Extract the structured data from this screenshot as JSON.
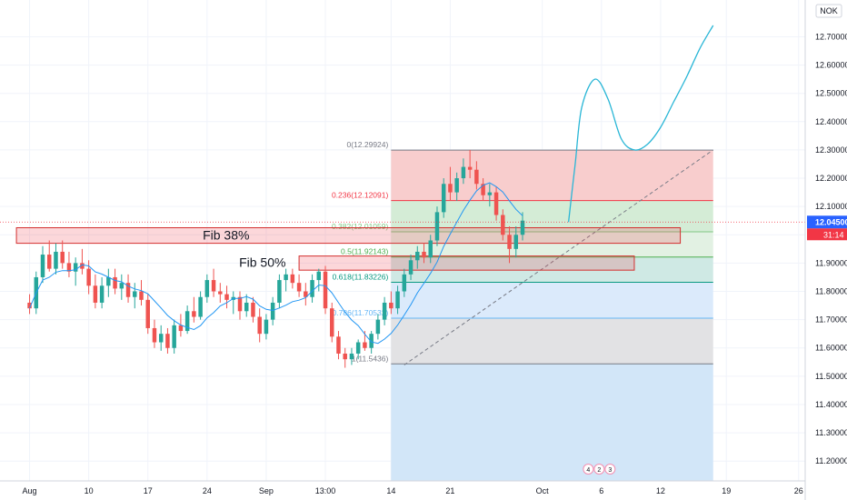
{
  "chart_data": {
    "type": "candlestick",
    "currency_badge": "NOK",
    "y_ticks": [
      "12.70000",
      "12.60000",
      "12.50000",
      "12.40000",
      "12.30000",
      "12.20000",
      "12.10000",
      "12.00000",
      "11.90000",
      "11.80000",
      "11.70000",
      "11.60000",
      "11.50000",
      "11.40000",
      "11.30000",
      "11.20000"
    ],
    "y_tick_values": [
      12.7,
      12.6,
      12.5,
      12.4,
      12.3,
      12.2,
      12.1,
      12.0,
      11.9,
      11.8,
      11.7,
      11.6,
      11.5,
      11.4,
      11.3,
      11.2
    ],
    "ylim": [
      11.13,
      12.83
    ],
    "x_ticks": [
      "Aug",
      "10",
      "17",
      "24",
      "Sep",
      "13:00",
      "14",
      "21",
      "Oct",
      "6",
      "12",
      "19",
      "26"
    ],
    "x_tick_index": [
      0,
      9,
      18,
      27,
      36,
      45,
      55,
      64,
      78,
      87,
      96,
      106,
      117
    ],
    "bar_index_range": [
      -4.5,
      118
    ],
    "current_price": {
      "label": "12.04500",
      "value": 12.045,
      "countdown": "31:14",
      "color": "#2962ff"
    },
    "fib_levels": [
      {
        "label": "0(12.29924)",
        "value": 12.29924,
        "color": "#787b86"
      },
      {
        "label": "0.236(12.12091)",
        "value": 12.12091,
        "color": "#f23645"
      },
      {
        "label": "0.382(12.01059)",
        "value": 12.01059,
        "color": "#81c784"
      },
      {
        "label": "0.5(11.92143)",
        "value": 11.92143,
        "color": "#4caf50"
      },
      {
        "label": "0.618(11.83226)",
        "value": 11.83226,
        "color": "#089981"
      },
      {
        "label": "0.786(11.70532)",
        "value": 11.70532,
        "color": "#64b5f6"
      },
      {
        "label": "1(11.5436)",
        "value": 11.5436,
        "color": "#787b86"
      }
    ],
    "fib_fills": [
      "#f8cdcd",
      "#d4ecd6",
      "#e2f1e3",
      "#cfe9e4",
      "#dbeafb",
      "#e2e2e4"
    ],
    "fib_start_index": 55,
    "fib_end_index": 104,
    "fib_extension_fill": "#d2e6f8",
    "zones": [
      {
        "label": "Fib 38%",
        "x_start": -2,
        "x_end": 99,
        "low": 11.97,
        "high": 12.025
      },
      {
        "label": "Fib 50%",
        "x_start": 41,
        "x_end": 92,
        "low": 11.875,
        "high": 11.925
      }
    ],
    "trendline": {
      "x_start": 57,
      "y_start": 11.54,
      "x_end": 104,
      "y_end": 12.3
    },
    "projection": {
      "x": [
        82,
        83,
        84,
        86,
        88,
        90,
        92,
        94,
        96,
        98,
        100,
        102,
        104
      ],
      "y": [
        12.045,
        12.25,
        12.45,
        12.55,
        12.48,
        12.34,
        12.3,
        12.32,
        12.38,
        12.47,
        12.56,
        12.66,
        12.74
      ]
    },
    "ma_color": "#2196f3",
    "up_color": "#26a69a",
    "down_color": "#ef5350",
    "ohlc": [
      [
        11.76,
        11.79,
        11.72,
        11.74
      ],
      [
        11.74,
        11.87,
        11.72,
        11.85
      ],
      [
        11.85,
        11.96,
        11.83,
        11.93
      ],
      [
        11.93,
        11.98,
        11.87,
        11.88
      ],
      [
        11.88,
        11.97,
        11.86,
        11.94
      ],
      [
        11.94,
        11.98,
        11.88,
        11.9
      ],
      [
        11.9,
        11.94,
        11.85,
        11.87
      ],
      [
        11.87,
        11.92,
        11.82,
        11.9
      ],
      [
        11.9,
        11.95,
        11.86,
        11.88
      ],
      [
        11.88,
        11.91,
        11.79,
        11.82
      ],
      [
        11.82,
        11.86,
        11.74,
        11.76
      ],
      [
        11.76,
        11.85,
        11.74,
        11.82
      ],
      [
        11.82,
        11.88,
        11.78,
        11.85
      ],
      [
        11.85,
        11.88,
        11.79,
        11.81
      ],
      [
        11.81,
        11.86,
        11.77,
        11.83
      ],
      [
        11.83,
        11.86,
        11.76,
        11.78
      ],
      [
        11.78,
        11.83,
        11.74,
        11.8
      ],
      [
        11.8,
        11.84,
        11.75,
        11.77
      ],
      [
        11.77,
        11.79,
        11.65,
        11.67
      ],
      [
        11.67,
        11.7,
        11.6,
        11.62
      ],
      [
        11.62,
        11.68,
        11.59,
        11.65
      ],
      [
        11.65,
        11.67,
        11.58,
        11.6
      ],
      [
        11.6,
        11.7,
        11.58,
        11.68
      ],
      [
        11.68,
        11.72,
        11.64,
        11.66
      ],
      [
        11.66,
        11.75,
        11.65,
        11.73
      ],
      [
        11.73,
        11.78,
        11.69,
        11.71
      ],
      [
        11.71,
        11.8,
        11.7,
        11.78
      ],
      [
        11.78,
        11.86,
        11.76,
        11.84
      ],
      [
        11.84,
        11.88,
        11.78,
        11.8
      ],
      [
        11.8,
        11.83,
        11.76,
        11.79
      ],
      [
        11.79,
        11.82,
        11.74,
        11.77
      ],
      [
        11.77,
        11.8,
        11.72,
        11.78
      ],
      [
        11.78,
        11.8,
        11.7,
        11.73
      ],
      [
        11.73,
        11.79,
        11.71,
        11.76
      ],
      [
        11.76,
        11.78,
        11.69,
        11.71
      ],
      [
        11.71,
        11.74,
        11.62,
        11.65
      ],
      [
        11.65,
        11.72,
        11.63,
        11.7
      ],
      [
        11.7,
        11.78,
        11.68,
        11.76
      ],
      [
        11.76,
        11.86,
        11.74,
        11.84
      ],
      [
        11.84,
        11.88,
        11.8,
        11.86
      ],
      [
        11.86,
        11.88,
        11.81,
        11.83
      ],
      [
        11.83,
        11.86,
        11.78,
        11.8
      ],
      [
        11.8,
        11.83,
        11.75,
        11.78
      ],
      [
        11.78,
        11.86,
        11.76,
        11.84
      ],
      [
        11.84,
        11.88,
        11.8,
        11.87
      ],
      [
        11.87,
        11.89,
        11.72,
        11.74
      ],
      [
        11.74,
        11.76,
        11.62,
        11.64
      ],
      [
        11.64,
        11.66,
        11.56,
        11.58
      ],
      [
        11.58,
        11.6,
        11.53,
        11.56
      ],
      [
        11.56,
        11.6,
        11.54,
        11.58
      ],
      [
        11.58,
        11.63,
        11.56,
        11.62
      ],
      [
        11.62,
        11.66,
        11.59,
        11.6
      ],
      [
        11.6,
        11.66,
        11.58,
        11.65
      ],
      [
        11.65,
        11.72,
        11.63,
        11.7
      ],
      [
        11.7,
        11.78,
        11.68,
        11.76
      ],
      [
        11.76,
        11.8,
        11.72,
        11.74
      ],
      [
        11.74,
        11.82,
        11.72,
        11.8
      ],
      [
        11.8,
        11.88,
        11.78,
        11.86
      ],
      [
        11.86,
        11.93,
        11.84,
        11.91
      ],
      [
        11.91,
        11.96,
        11.88,
        11.94
      ],
      [
        11.94,
        11.97,
        11.9,
        11.92
      ],
      [
        11.92,
        12.0,
        11.9,
        11.98
      ],
      [
        11.98,
        12.1,
        11.96,
        12.08
      ],
      [
        12.08,
        12.2,
        12.06,
        12.18
      ],
      [
        12.18,
        12.24,
        12.12,
        12.15
      ],
      [
        12.15,
        12.22,
        12.12,
        12.2
      ],
      [
        12.2,
        12.27,
        12.18,
        12.24
      ],
      [
        12.24,
        12.3,
        12.2,
        12.23
      ],
      [
        12.23,
        12.26,
        12.16,
        12.18
      ],
      [
        12.18,
        12.2,
        12.12,
        12.14
      ],
      [
        12.14,
        12.18,
        12.1,
        12.15
      ],
      [
        12.15,
        12.17,
        12.05,
        12.07
      ],
      [
        12.07,
        12.09,
        11.98,
        12.0
      ],
      [
        12.0,
        12.03,
        11.9,
        11.95
      ],
      [
        11.95,
        12.03,
        11.92,
        12.0
      ],
      [
        12.0,
        12.08,
        11.98,
        12.05
      ]
    ]
  }
}
